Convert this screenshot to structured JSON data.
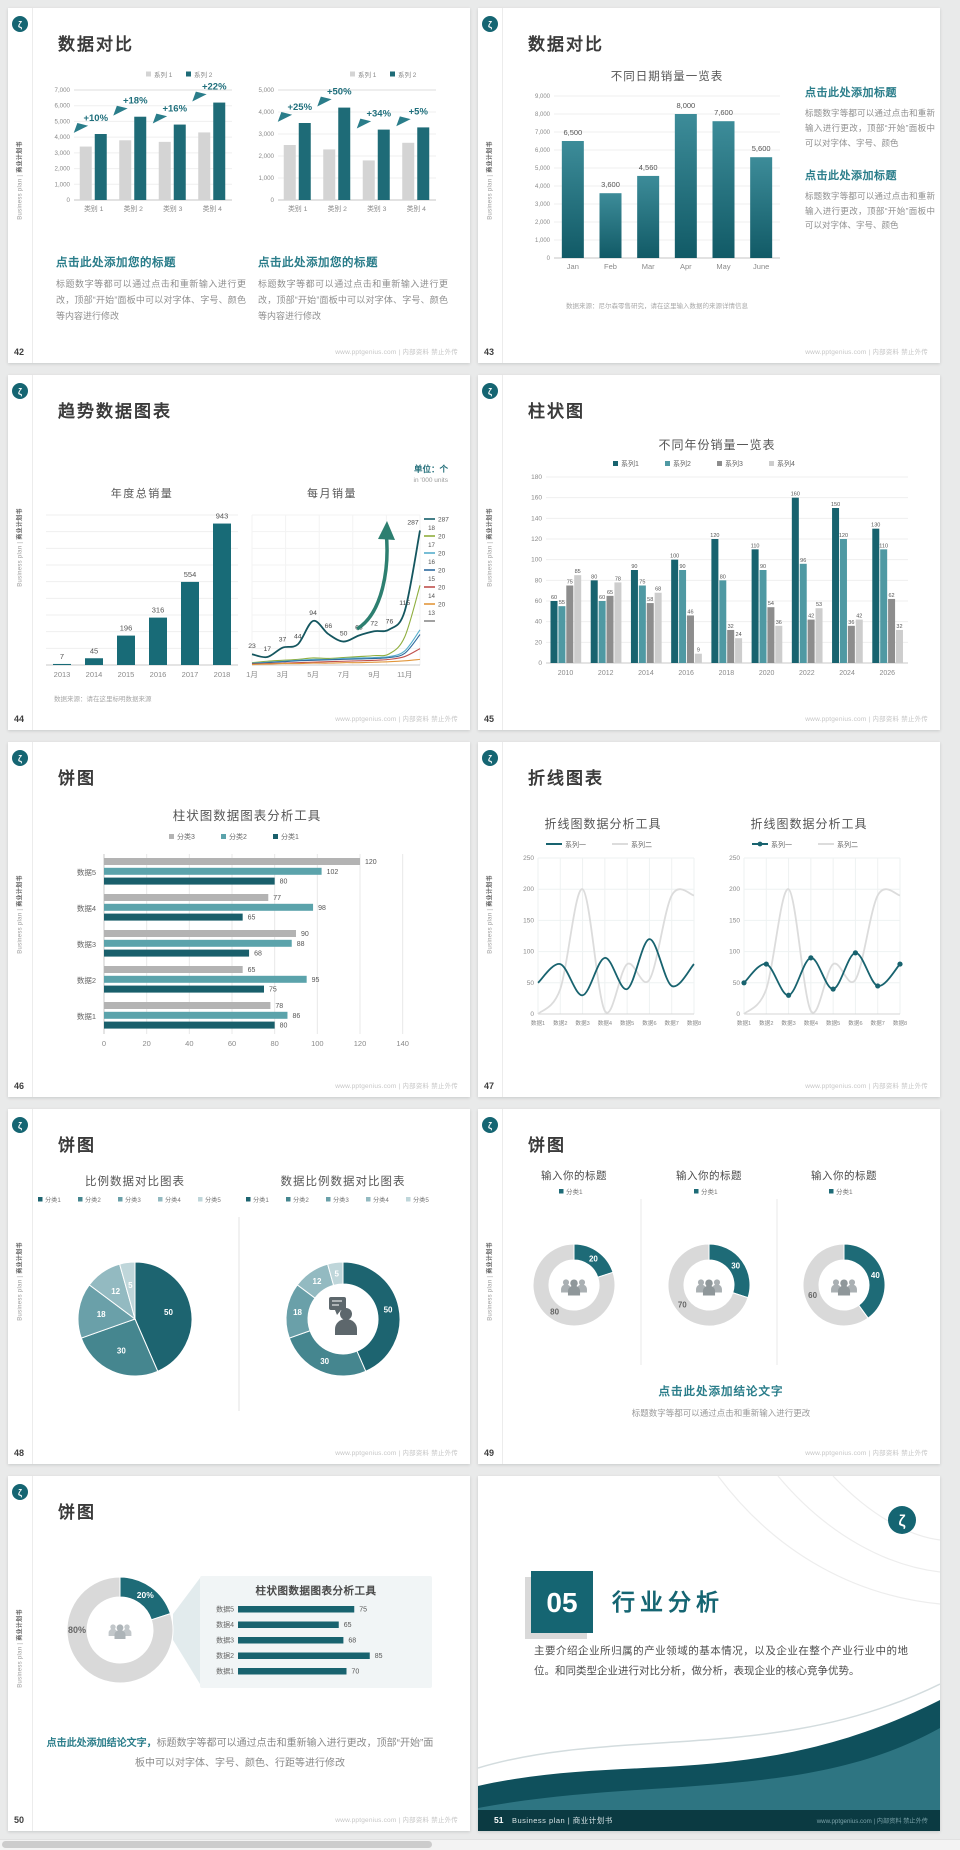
{
  "common": {
    "side_text_en": "Business plan",
    "side_text_divider": "|",
    "side_text_cn": "商业计划书",
    "footer_note": "www.pptgenius.com | 内部资料 禁止外传",
    "brand_glyph": "ζ"
  },
  "colors": {
    "accent": "#1e6b77",
    "accent_dark": "#155f6b",
    "heading_teal": "#2a7d8a",
    "bar_gray": "#d4d4d4",
    "grid_line": "#efefef",
    "axis_text": "#8a8a8a",
    "grouped_series": [
      "#18636f",
      "#4f99a3",
      "#8d8d8d",
      "#cdcdcd"
    ],
    "hbar_series": [
      "#b3b3b3",
      "#5ba3ab",
      "#195f6b"
    ],
    "pie_colors": [
      "#1d6470",
      "#45868f",
      "#6aa0a9",
      "#93bac1",
      "#bfd6da"
    ],
    "donut_gray": "#d9d9d9",
    "line_secondary": "#dcdcdc",
    "section_teal": "#156572",
    "wave_dark": "#0f505c",
    "wave_mid": "#347b88",
    "footer_bar": "#0b3a42"
  },
  "slides": [
    {
      "page_no": "42",
      "layout": "two-bar-compare",
      "title": "数据对比",
      "charts": [
        {
          "type": "bar",
          "legend": [
            "系列 1",
            "系列 2"
          ],
          "categories": [
            "类别 1",
            "类别 2",
            "类别 3",
            "类别 4"
          ],
          "series": [
            {
              "name": "系列 1",
              "values": [
                3400,
                3800,
                3700,
                4300
              ]
            },
            {
              "name": "系列 2",
              "values": [
                4200,
                5300,
                4800,
                6200
              ]
            }
          ],
          "growth_labels": [
            "+10%",
            "+18%",
            "+16%",
            "+22%"
          ],
          "ymax": 7000,
          "yticks": [
            "7,000",
            "6,000",
            "5,000",
            "4,000",
            "3,000",
            "2,000",
            "1,000",
            "0"
          ]
        },
        {
          "type": "bar",
          "legend": [
            "系列 1",
            "系列 2"
          ],
          "categories": [
            "类别 1",
            "类别 2",
            "类别 3",
            "类别 4"
          ],
          "series": [
            {
              "name": "系列 1",
              "values": [
                2500,
                2300,
                1800,
                2600
              ]
            },
            {
              "name": "系列 2",
              "values": [
                3500,
                4200,
                3200,
                3300
              ]
            }
          ],
          "growth_labels": [
            "+25%",
            "+50%",
            "+34%",
            "+5%"
          ],
          "ymax": 5000,
          "yticks": [
            "5,000",
            "4,000",
            "3,000",
            "2,000",
            "1,000",
            "0"
          ]
        }
      ],
      "text_blocks": [
        {
          "heading": "点击此处添加您的标题",
          "body": "标题数字等都可以通过点击和重新输入进行更改，顶部“开始”面板中可以对字体、字号、颜色等内容进行修改"
        },
        {
          "heading": "点击此处添加您的标题",
          "body": "标题数字等都可以通过点击和重新输入进行更改，顶部“开始”面板中可以对字体、字号、颜色等内容进行修改"
        }
      ]
    },
    {
      "page_no": "43",
      "layout": "bar-labeled",
      "title": "数据对比",
      "chart": {
        "type": "bar",
        "title": "不同日期销量一览表",
        "categories": [
          "Jan",
          "Feb",
          "Mar",
          "Apr",
          "May",
          "June"
        ],
        "values": [
          6500,
          3600,
          4560,
          8000,
          7600,
          5600
        ],
        "value_labels": [
          "6,500",
          "3,600",
          "4,560",
          "8,000",
          "7,600",
          "5,600"
        ],
        "ymax": 9000,
        "yticks": [
          "9,000",
          "8,000",
          "7,000",
          "6,000",
          "5,000",
          "4,000",
          "3,000",
          "2,000",
          "1,000",
          "0"
        ]
      },
      "source_note": "数据来源：尼尔森零售研究，请在这里输入数据的来源详情信息",
      "text_blocks": [
        {
          "heading": "点击此处添加标题",
          "body": "标题数字等都可以通过点击和重新输入进行更改，顶部“开始”面板中可以对字体、字号、颜色"
        },
        {
          "heading": "点击此处添加标题",
          "body": "标题数字等都可以通过点击和重新输入进行更改，顶部“开始”面板中可以对字体、字号、颜色"
        }
      ]
    },
    {
      "page_no": "44",
      "layout": "trend",
      "title": "趋势数据图表",
      "unit_label": "单位：个",
      "unit_sublabel": "in '000 units",
      "source_note": "数据来源：请在这里标明数据来源",
      "bar_chart": {
        "type": "bar",
        "title": "年度总销量",
        "categories": [
          "2013",
          "2014",
          "2015",
          "2016",
          "2017",
          "2018"
        ],
        "values": [
          7,
          45,
          196,
          316,
          554,
          943
        ]
      },
      "line_chart": {
        "type": "line",
        "title": "每月销量",
        "x_tick_labels": [
          "1月",
          "3月",
          "5月",
          "7月",
          "9月",
          "11月"
        ],
        "main_series": {
          "name": "主系列",
          "values": [
            23,
            17,
            37,
            44,
            94,
            66,
            50,
            63,
            72,
            76,
            115,
            287
          ]
        },
        "sub_series": [
          {
            "color": "#8fae3e",
            "values": [
              5,
              8,
              10,
              12,
              15,
              14,
              16,
              18,
              20,
              24,
              60,
              170
            ]
          },
          {
            "color": "#56aecc",
            "values": [
              4,
              6,
              8,
              10,
              12,
              12,
              14,
              15,
              16,
              18,
              30,
              75
            ]
          },
          {
            "color": "#2f6b9e",
            "values": [
              3,
              5,
              7,
              9,
              10,
              11,
              12,
              13,
              14,
              16,
              25,
              65
            ]
          },
          {
            "color": "#c0504d",
            "values": [
              2,
              3,
              4,
              5,
              6,
              7,
              8,
              9,
              10,
              12,
              18,
              35
            ]
          },
          {
            "color": "#e2973c",
            "values": [
              1,
              2,
              3,
              3,
              4,
              4,
              5,
              5,
              6,
              7,
              9,
              12
            ]
          }
        ],
        "end_labels": [
          {
            "pre": "",
            "val": "287",
            "color": "#155f6b"
          },
          {
            "pre": "18",
            "val": "20",
            "color": "#8fae3e"
          },
          {
            "pre": "17",
            "val": "20",
            "color": "#56aecc"
          },
          {
            "pre": "16",
            "val": "20",
            "color": "#2f6b9e"
          },
          {
            "pre": "15",
            "val": "20",
            "color": "#c0504d"
          },
          {
            "pre": "14",
            "val": "20",
            "color": "#e2973c"
          },
          {
            "pre": "13",
            "val": "",
            "color": "#8a8a8a"
          }
        ]
      }
    },
    {
      "page_no": "45",
      "layout": "grouped-bar",
      "title": "柱状图",
      "chart": {
        "type": "bar",
        "title": "不同年份销量一览表",
        "legend": [
          "系列1",
          "系列2",
          "系列3",
          "系列4"
        ],
        "categories": [
          "2010",
          "2012",
          "2014",
          "2016",
          "2018",
          "2020",
          "2022",
          "2024",
          "2026"
        ],
        "series": [
          {
            "name": "系列1",
            "values": [
              60,
              80,
              90,
              100,
              120,
              110,
              160,
              150,
              130
            ]
          },
          {
            "name": "系列2",
            "values": [
              55,
              60,
              75,
              90,
              80,
              90,
              96,
              120,
              110
            ]
          },
          {
            "name": "系列3",
            "values": [
              75,
              65,
              58,
              46,
              32,
              54,
              42,
              36,
              62
            ]
          },
          {
            "name": "系列4",
            "values": [
              85,
              78,
              68,
              9,
              24,
              36,
              53,
              42,
              32
            ]
          }
        ],
        "ymax": 180,
        "yticks": [
          "180",
          "160",
          "140",
          "120",
          "100",
          "80",
          "60",
          "40",
          "20",
          "0"
        ]
      }
    },
    {
      "page_no": "46",
      "layout": "hbar",
      "title": "饼图",
      "chart": {
        "type": "bar",
        "orientation": "horizontal",
        "title": "柱状图数据图表分析工具",
        "legend": [
          "分类3",
          "分类2",
          "分类1"
        ],
        "rows": [
          "数据5",
          "数据4",
          "数据3",
          "数据2",
          "数据1"
        ],
        "series": [
          {
            "name": "分类3",
            "values": [
              120,
              77,
              90,
              65,
              78
            ]
          },
          {
            "name": "分类2",
            "values": [
              102,
              98,
              88,
              95,
              86
            ]
          },
          {
            "name": "分类1",
            "values": [
              80,
              65,
              68,
              75,
              80
            ]
          }
        ],
        "xticks": [
          "0",
          "20",
          "40",
          "60",
          "80",
          "100",
          "120",
          "140"
        ],
        "xmax": 150
      }
    },
    {
      "page_no": "47",
      "layout": "dual-line",
      "title": "折线图表",
      "charts": [
        {
          "type": "line",
          "title": "折线图数据分析工具",
          "legend": [
            "系列一",
            "系列二"
          ],
          "categories": [
            "数据1",
            "数据2",
            "数据3",
            "数据4",
            "数据5",
            "数据6",
            "数据7",
            "数据8"
          ],
          "series": [
            {
              "name": "系列一",
              "values": [
                50,
                80,
                30,
                90,
                40,
                120,
                45,
                80
              ]
            },
            {
              "name": "系列二",
              "values": [
                0,
                40,
                200,
                5,
                80,
                55,
                190,
                190
              ]
            }
          ],
          "ymax": 250,
          "yticks": [
            "250",
            "200",
            "150",
            "100",
            "50",
            "0"
          ],
          "markers": false
        },
        {
          "type": "line",
          "title": "折线图数据分析工具",
          "legend": [
            "系列一",
            "系列二"
          ],
          "categories": [
            "数据1",
            "数据2",
            "数据3",
            "数据4",
            "数据5",
            "数据6",
            "数据7",
            "数据8"
          ],
          "series": [
            {
              "name": "系列一",
              "values": [
                50,
                80,
                30,
                90,
                40,
                98,
                45,
                80
              ]
            },
            {
              "name": "系列二",
              "values": [
                0,
                40,
                200,
                5,
                80,
                55,
                190,
                190
              ]
            }
          ],
          "ymax": 250,
          "yticks": [
            "250",
            "200",
            "150",
            "100",
            "50",
            "0"
          ],
          "markers": true
        }
      ]
    },
    {
      "page_no": "48",
      "layout": "two-pie",
      "title": "饼图",
      "charts": [
        {
          "type": "pie",
          "title": "比例数据对比图表",
          "legend": [
            "分类1",
            "分类2",
            "分类3",
            "分类4",
            "分类5"
          ],
          "values": [
            50,
            30,
            18,
            12,
            5
          ],
          "donut": false
        },
        {
          "type": "pie",
          "title": "数据比例数据对比图表",
          "legend": [
            "分类1",
            "分类2",
            "分类3",
            "分类4",
            "分类5"
          ],
          "values": [
            50,
            30,
            18,
            12,
            5
          ],
          "donut": true,
          "center_icon": "person-speech-icon"
        }
      ]
    },
    {
      "page_no": "49",
      "layout": "three-donut",
      "title": "饼图",
      "donuts": [
        {
          "type": "pie",
          "title": "输入你的标题",
          "legend": [
            "分类1"
          ],
          "teal_value": 20,
          "gray_value": 80
        },
        {
          "type": "pie",
          "title": "输入你的标题",
          "legend": [
            "分类1"
          ],
          "teal_value": 30,
          "gray_value": 70
        },
        {
          "type": "pie",
          "title": "输入你的标题",
          "legend": [
            "分类1"
          ],
          "teal_value": 40,
          "gray_value": 60
        }
      ],
      "conclusion_heading": "点击此处添加结论文字",
      "conclusion_body": "标题数字等都可以通过点击和重新输入进行更改"
    },
    {
      "page_no": "50",
      "layout": "donut-callout",
      "title": "饼图",
      "donut": {
        "type": "pie",
        "teal_value": 20,
        "gray_value": 80,
        "teal_label": "20%",
        "gray_label": "80%"
      },
      "panel": {
        "title": "柱状图数据图表分析工具",
        "rows": [
          "数据5",
          "数据4",
          "数据3",
          "数据2",
          "数据1"
        ],
        "values": [
          75,
          65,
          68,
          85,
          70
        ],
        "xmax": 100
      },
      "conclusion_heading": "点击此处添加结论文字，",
      "conclusion_body": "标题数字等都可以通过点击和重新输入进行更改，顶部“开始”面板中可以对字体、字号、颜色、行距等进行修改"
    },
    {
      "page_no": "51",
      "layout": "section",
      "section_number": "05",
      "section_title": "行业分析",
      "body": "主要介绍企业所归属的产业领域的基本情况，以及企业在整个产业行业中的地位。和同类型企业进行对比分析，做分析，表现企业的核心竞争优势。",
      "footer_brand": "Business plan | 商业计划书"
    }
  ]
}
